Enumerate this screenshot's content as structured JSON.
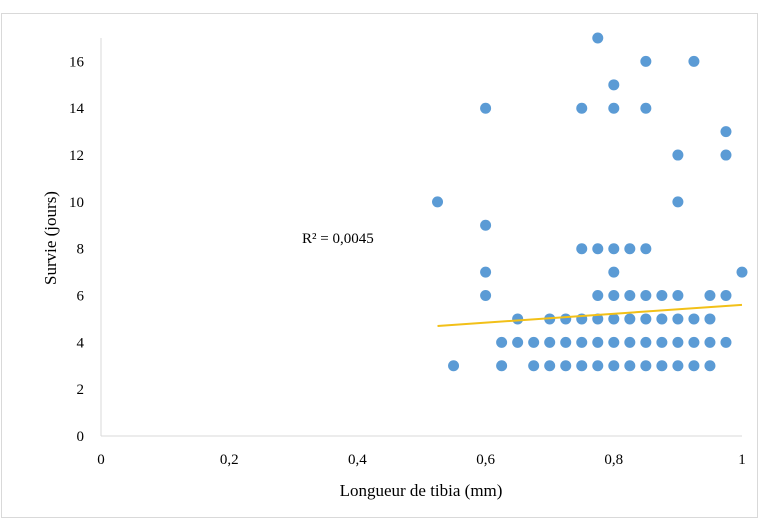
{
  "chart_data": {
    "type": "scatter",
    "xlabel": "Longueur de tibia (mm)",
    "ylabel": "Survie (jours)",
    "xlim": [
      0,
      1
    ],
    "ylim": [
      0,
      17
    ],
    "x_ticks": [
      0,
      0.2,
      0.4,
      0.6,
      0.8,
      1
    ],
    "x_tick_labels": [
      "0",
      "0,2",
      "0,4",
      "0,6",
      "0,8",
      "1"
    ],
    "y_ticks": [
      0,
      2,
      4,
      6,
      8,
      10,
      12,
      14,
      16
    ],
    "y_tick_labels": [
      "0",
      "2",
      "4",
      "6",
      "8",
      "10",
      "12",
      "14",
      "16"
    ],
    "grid": false,
    "marker_color": "#5b9bd5",
    "trendline": {
      "type": "linear",
      "x_range": [
        0.525,
        1
      ],
      "y_at_start": 4.7,
      "y_at_end": 5.6,
      "color": "#f2c018",
      "r2_label": "R² = 0,0045"
    },
    "points": [
      [
        0.525,
        10
      ],
      [
        0.55,
        3
      ],
      [
        0.6,
        14
      ],
      [
        0.6,
        9
      ],
      [
        0.6,
        7
      ],
      [
        0.6,
        6
      ],
      [
        0.625,
        4
      ],
      [
        0.625,
        3
      ],
      [
        0.65,
        5
      ],
      [
        0.65,
        4
      ],
      [
        0.675,
        4
      ],
      [
        0.675,
        3
      ],
      [
        0.7,
        5
      ],
      [
        0.7,
        4
      ],
      [
        0.7,
        3
      ],
      [
        0.725,
        5
      ],
      [
        0.725,
        4
      ],
      [
        0.725,
        3
      ],
      [
        0.75,
        14
      ],
      [
        0.75,
        8
      ],
      [
        0.75,
        5
      ],
      [
        0.75,
        4
      ],
      [
        0.75,
        3
      ],
      [
        0.775,
        17
      ],
      [
        0.775,
        8
      ],
      [
        0.775,
        6
      ],
      [
        0.775,
        5
      ],
      [
        0.775,
        4
      ],
      [
        0.775,
        3
      ],
      [
        0.8,
        15
      ],
      [
        0.8,
        14
      ],
      [
        0.8,
        8
      ],
      [
        0.8,
        7
      ],
      [
        0.8,
        6
      ],
      [
        0.8,
        5
      ],
      [
        0.8,
        4
      ],
      [
        0.8,
        3
      ],
      [
        0.825,
        8
      ],
      [
        0.825,
        6
      ],
      [
        0.825,
        5
      ],
      [
        0.825,
        4
      ],
      [
        0.825,
        3
      ],
      [
        0.85,
        16
      ],
      [
        0.85,
        14
      ],
      [
        0.85,
        8
      ],
      [
        0.85,
        6
      ],
      [
        0.85,
        5
      ],
      [
        0.85,
        4
      ],
      [
        0.85,
        3
      ],
      [
        0.875,
        6
      ],
      [
        0.875,
        5
      ],
      [
        0.875,
        4
      ],
      [
        0.875,
        3
      ],
      [
        0.9,
        12
      ],
      [
        0.9,
        10
      ],
      [
        0.9,
        6
      ],
      [
        0.9,
        5
      ],
      [
        0.9,
        4
      ],
      [
        0.9,
        3
      ],
      [
        0.925,
        16
      ],
      [
        0.925,
        5
      ],
      [
        0.925,
        4
      ],
      [
        0.925,
        3
      ],
      [
        0.95,
        6
      ],
      [
        0.95,
        5
      ],
      [
        0.95,
        4
      ],
      [
        0.95,
        3
      ],
      [
        0.975,
        13
      ],
      [
        0.975,
        12
      ],
      [
        0.975,
        6
      ],
      [
        0.975,
        4
      ],
      [
        1.0,
        7
      ]
    ]
  }
}
